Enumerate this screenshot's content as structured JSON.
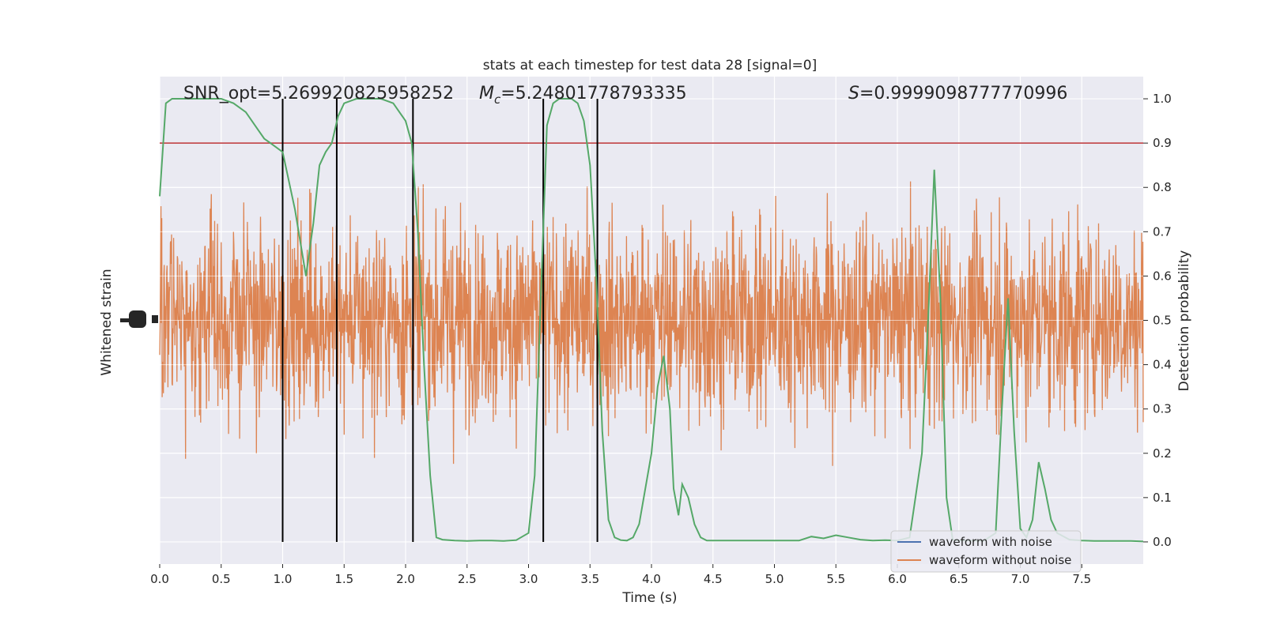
{
  "chart_data": {
    "type": "line",
    "title": "stats at each timestep for test data 28 [signal=0]",
    "xlabel": "Time (s)",
    "ylabel_left": "Whitened strain",
    "ylabel_right": "Detection probability",
    "xlim": [
      0,
      8
    ],
    "ylim_right": [
      -0.05,
      1.05
    ],
    "x_ticks": [
      "0.0",
      "0.5",
      "1.0",
      "1.5",
      "2.0",
      "2.5",
      "3.0",
      "3.5",
      "4.0",
      "4.5",
      "5.0",
      "5.5",
      "6.0",
      "6.5",
      "7.0",
      "7.5"
    ],
    "y_ticks_right": [
      "0.0",
      "0.1",
      "0.2",
      "0.3",
      "0.4",
      "0.5",
      "0.6",
      "0.7",
      "0.8",
      "0.9",
      "1.0"
    ],
    "annotations": {
      "snr": "SNR_opt=5.269920825958252",
      "mc_symbol": "M",
      "mc_sub": "c",
      "mc_value": "=5.24801778793335",
      "s_symbol": "S",
      "s_value": "=0.9999098777770996"
    },
    "threshold": 0.9,
    "vertical_lines": [
      1.0,
      1.44,
      2.06,
      3.12,
      3.56
    ],
    "legend": {
      "position": "bottom-right",
      "entries": [
        "waveform with noise",
        "waveform without noise"
      ]
    },
    "colors": {
      "background": "#eaeaf2",
      "grid": "#ffffff",
      "noise_waveform": "#4c72b0",
      "clean_waveform": "#dd8452",
      "probability": "#55a868",
      "threshold": "#c44e52",
      "vlines": "#000000"
    },
    "probability_series": {
      "name": "",
      "x": [
        0.0,
        0.05,
        0.1,
        0.2,
        0.3,
        0.4,
        0.5,
        0.6,
        0.7,
        0.8,
        0.85,
        0.9,
        1.0,
        1.1,
        1.19,
        1.25,
        1.3,
        1.35,
        1.4,
        1.45,
        1.5,
        1.6,
        1.7,
        1.8,
        1.9,
        2.0,
        2.05,
        2.1,
        2.15,
        2.2,
        2.25,
        2.3,
        2.4,
        2.5,
        2.6,
        2.7,
        2.8,
        2.9,
        3.0,
        3.05,
        3.1,
        3.15,
        3.2,
        3.25,
        3.3,
        3.35,
        3.4,
        3.45,
        3.5,
        3.55,
        3.6,
        3.65,
        3.7,
        3.75,
        3.8,
        3.85,
        3.9,
        4.0,
        4.05,
        4.1,
        4.15,
        4.18,
        4.22,
        4.25,
        4.3,
        4.35,
        4.4,
        4.45,
        4.5,
        4.6,
        4.8,
        5.0,
        5.2,
        5.3,
        5.4,
        5.5,
        5.6,
        5.7,
        5.8,
        5.9,
        6.0,
        6.1,
        6.2,
        6.25,
        6.3,
        6.35,
        6.4,
        6.45,
        6.5,
        6.6,
        6.7,
        6.8,
        6.85,
        6.9,
        6.95,
        7.0,
        7.05,
        7.1,
        7.15,
        7.2,
        7.25,
        7.3,
        7.4,
        7.5,
        7.6,
        7.7,
        7.8,
        7.9,
        8.0
      ],
      "values": [
        0.78,
        0.99,
        1.0,
        1.0,
        1.0,
        1.0,
        1.0,
        0.99,
        0.97,
        0.93,
        0.91,
        0.9,
        0.88,
        0.75,
        0.6,
        0.72,
        0.85,
        0.88,
        0.9,
        0.96,
        0.99,
        1.0,
        1.0,
        1.0,
        0.99,
        0.95,
        0.9,
        0.7,
        0.4,
        0.15,
        0.01,
        0.005,
        0.003,
        0.002,
        0.003,
        0.003,
        0.002,
        0.004,
        0.02,
        0.15,
        0.55,
        0.94,
        0.99,
        1.0,
        1.0,
        1.0,
        0.99,
        0.95,
        0.85,
        0.6,
        0.25,
        0.05,
        0.01,
        0.004,
        0.003,
        0.01,
        0.04,
        0.2,
        0.35,
        0.42,
        0.3,
        0.12,
        0.06,
        0.13,
        0.1,
        0.04,
        0.01,
        0.003,
        0.003,
        0.003,
        0.003,
        0.003,
        0.003,
        0.012,
        0.008,
        0.015,
        0.01,
        0.005,
        0.003,
        0.004,
        0.003,
        0.01,
        0.2,
        0.5,
        0.84,
        0.55,
        0.1,
        0.005,
        0.003,
        0.003,
        0.002,
        0.02,
        0.3,
        0.55,
        0.25,
        0.03,
        0.01,
        0.05,
        0.18,
        0.12,
        0.05,
        0.02,
        0.005,
        0.003,
        0.002,
        0.002,
        0.002,
        0.002,
        0.001
      ]
    }
  }
}
